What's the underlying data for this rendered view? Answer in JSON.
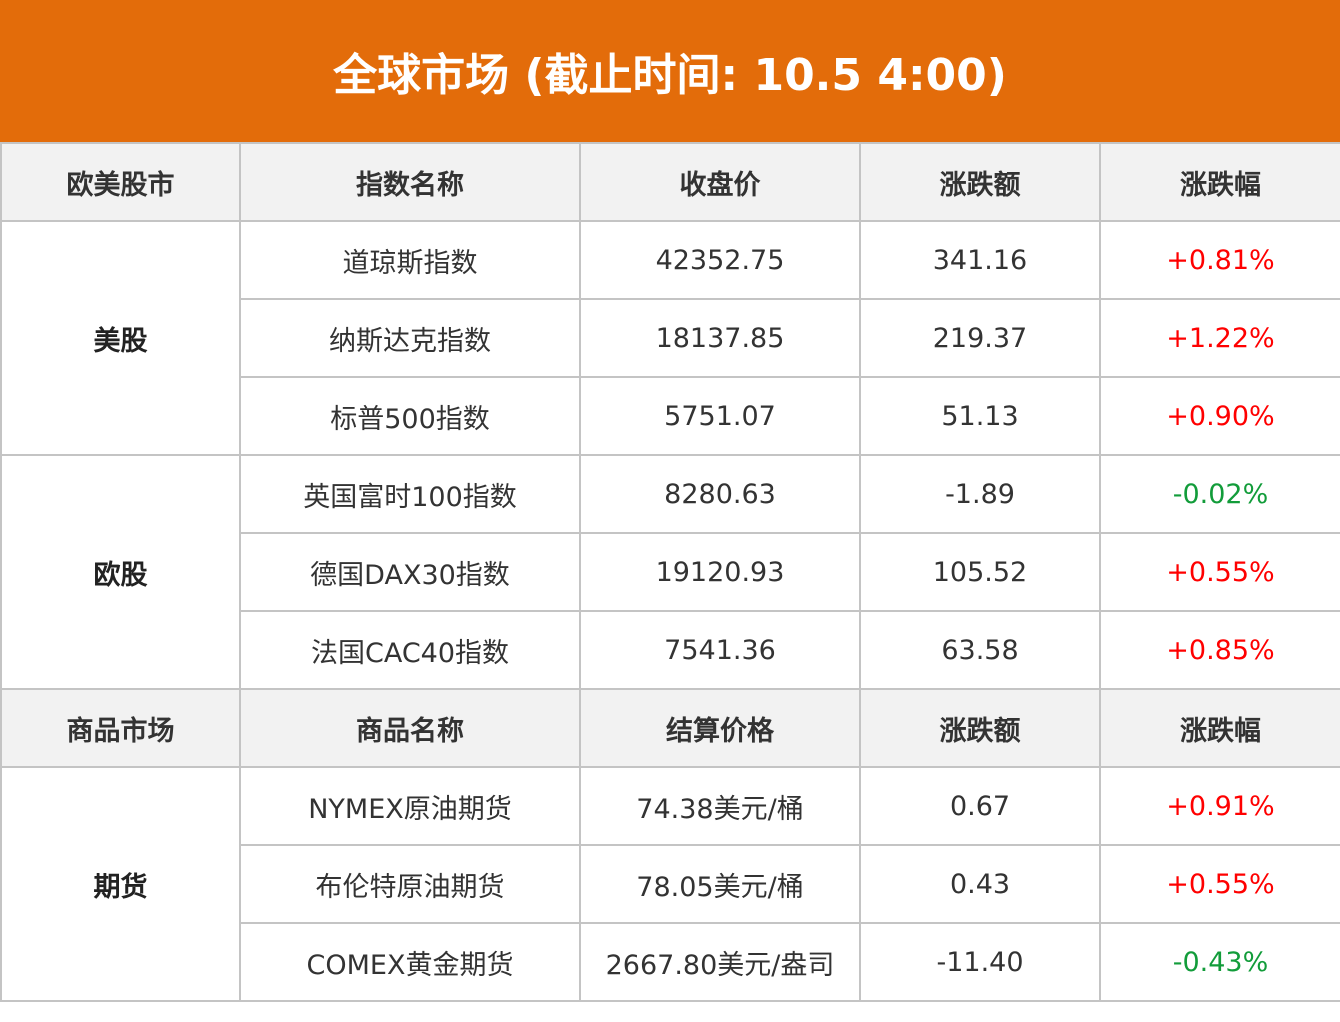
{
  "title": "全球市场 (截止时间: 10.5 4:00)",
  "colors": {
    "header_bg": "#e36c0a",
    "up": "#ff0000",
    "down": "#129c3a"
  },
  "sections": [
    {
      "headers": [
        "欧美股市",
        "指数名称",
        "收盘价",
        "涨跌额",
        "涨跌幅"
      ],
      "groups": [
        {
          "category": "美股",
          "rows": [
            {
              "name": "道琼斯指数",
              "price": "42352.75",
              "change": "341.16",
              "pct": "+0.81%",
              "dir": "up"
            },
            {
              "name": "纳斯达克指数",
              "price": "18137.85",
              "change": "219.37",
              "pct": "+1.22%",
              "dir": "up"
            },
            {
              "name": "标普500指数",
              "price": "5751.07",
              "change": "51.13",
              "pct": "+0.90%",
              "dir": "up"
            }
          ]
        },
        {
          "category": "欧股",
          "rows": [
            {
              "name": "英国富时100指数",
              "price": "8280.63",
              "change": "-1.89",
              "pct": "-0.02%",
              "dir": "down"
            },
            {
              "name": "德国DAX30指数",
              "price": "19120.93",
              "change": "105.52",
              "pct": "+0.55%",
              "dir": "up"
            },
            {
              "name": "法国CAC40指数",
              "price": "7541.36",
              "change": "63.58",
              "pct": "+0.85%",
              "dir": "up"
            }
          ]
        }
      ]
    },
    {
      "headers": [
        "商品市场",
        "商品名称",
        "结算价格",
        "涨跌额",
        "涨跌幅"
      ],
      "groups": [
        {
          "category": "期货",
          "rows": [
            {
              "name": "NYMEX原油期货",
              "price": "74.38美元/桶",
              "change": "0.67",
              "pct": "+0.91%",
              "dir": "up"
            },
            {
              "name": "布伦特原油期货",
              "price": "78.05美元/桶",
              "change": "0.43",
              "pct": "+0.55%",
              "dir": "up"
            },
            {
              "name": "COMEX黄金期货",
              "price": "2667.80美元/盎司",
              "change": "-11.40",
              "pct": "-0.43%",
              "dir": "down"
            }
          ]
        }
      ]
    }
  ]
}
